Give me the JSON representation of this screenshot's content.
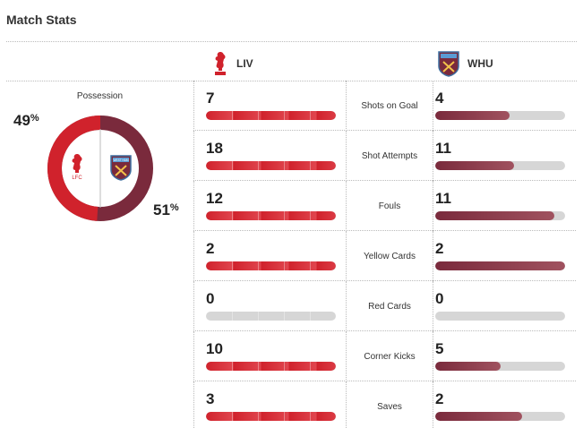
{
  "title": "Match Stats",
  "teams": {
    "home": {
      "abbr": "LIV",
      "crest_text": "LFC",
      "color": "#d0222c",
      "icon": "liverbird-crest-icon"
    },
    "away": {
      "abbr": "WHU",
      "crest_text": "WEST HAM",
      "color": "#7a2a3c",
      "icon": "west-ham-crest-icon"
    }
  },
  "possession": {
    "label": "Possession",
    "home_value": "49",
    "away_value": "51",
    "unit": "%"
  },
  "stats": [
    {
      "label": "Shots on Goal",
      "home": 7,
      "away": 4,
      "home_fill": 1.0,
      "away_fill": 0.57
    },
    {
      "label": "Shot Attempts",
      "home": 18,
      "away": 11,
      "home_fill": 1.0,
      "away_fill": 0.61
    },
    {
      "label": "Fouls",
      "home": 12,
      "away": 11,
      "home_fill": 1.0,
      "away_fill": 0.92
    },
    {
      "label": "Yellow Cards",
      "home": 2,
      "away": 2,
      "home_fill": 1.0,
      "away_fill": 1.0
    },
    {
      "label": "Red Cards",
      "home": 0,
      "away": 0,
      "home_fill": 0.0,
      "away_fill": 0.0
    },
    {
      "label": "Corner Kicks",
      "home": 10,
      "away": 5,
      "home_fill": 1.0,
      "away_fill": 0.5
    },
    {
      "label": "Saves",
      "home": 3,
      "away": 2,
      "home_fill": 1.0,
      "away_fill": 0.67
    }
  ]
}
